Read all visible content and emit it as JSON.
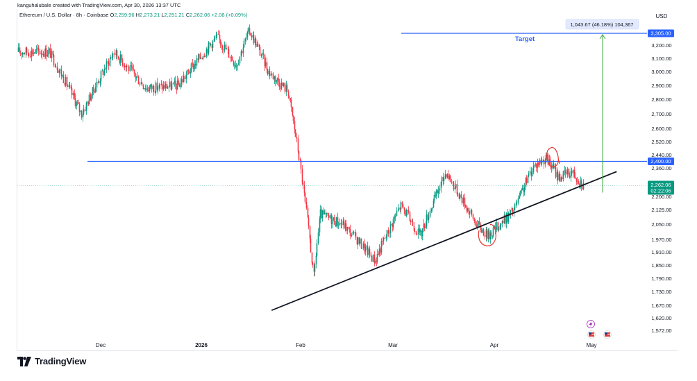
{
  "credit": "kanguhalubale created with TradingView.com, Apr 30, 2026 13:37 UTC",
  "legend": {
    "symbol": "Ethereum / U.S. Dollar · 8h · Coinbase",
    "o_label": "O",
    "o": "2,259.96",
    "h_label": "H",
    "h": "2,273.21",
    "l_label": "L",
    "l": "2,251.21",
    "c_label": "C",
    "c": "2,262.06",
    "change": "+2.08 (+0.09%)"
  },
  "logo_text": "TradingView",
  "colors": {
    "up": "#089981",
    "down": "#f23645",
    "hline": "#2962ff",
    "trend": "#131722",
    "target_arrow": "#4caf50",
    "annotation": "#e53935",
    "price_tag": "#089981"
  },
  "icons": [
    "flag-us-icon",
    "flag-us-icon",
    "lightning-event-icon"
  ],
  "chart_data": {
    "type": "candlestick",
    "currency": "USD",
    "y_axis_ticks": [
      "3,305.00",
      "3,200.00",
      "3,100.00",
      "3,000.00",
      "2,900.00",
      "2,800.00",
      "2,700.00",
      "2,600.00",
      "2,520.00",
      "2,440.00",
      "2,400.00",
      "2,360.00",
      "2,280.00",
      "2,262.06",
      "2,200.00",
      "2,125.00",
      "2,050.00",
      "1,970.00",
      "1,910.00",
      "1,850.00",
      "1,790.00",
      "1,730.00",
      "1,670.00",
      "1,620.00",
      "1,572.00"
    ],
    "y_tick_values": [
      3200,
      3100,
      3000,
      2900,
      2800,
      2700,
      2600,
      2520,
      2440,
      2360,
      2280,
      2200,
      2125,
      2050,
      1970,
      1910,
      1850,
      1790,
      1730,
      1670,
      1620,
      1572
    ],
    "x_labels": [
      "Dec",
      "2026",
      "Feb",
      "Mar",
      "Apr",
      "May"
    ],
    "last_price": "2,262.06",
    "countdown": "02:22:06",
    "resistance": {
      "value": 2400.0,
      "label": "2,400.00"
    },
    "target": {
      "value": 3305.0,
      "label": "3,305.00",
      "text": "Target"
    },
    "measure_label": "1,043.67 (46.18%) 104,367",
    "trendline": {
      "from": {
        "date": "2026-01-23",
        "price": 1650
      },
      "to": {
        "date": "2026-05-10",
        "price": 2340
      }
    },
    "anchors": [
      {
        "date": "2025-11-15",
        "price": 3150
      },
      {
        "date": "2025-11-25",
        "price": 2700
      },
      {
        "date": "2025-12-05",
        "price": 3150
      },
      {
        "date": "2025-12-15",
        "price": 2880
      },
      {
        "date": "2025-12-25",
        "price": 2900
      },
      {
        "date": "2026-01-06",
        "price": 3270
      },
      {
        "date": "2026-01-12",
        "price": 3050
      },
      {
        "date": "2026-01-16",
        "price": 3330
      },
      {
        "date": "2026-01-22",
        "price": 3000
      },
      {
        "date": "2026-01-28",
        "price": 2860
      },
      {
        "date": "2026-02-01",
        "price": 2350
      },
      {
        "date": "2026-02-05",
        "price": 1790
      },
      {
        "date": "2026-02-07",
        "price": 2100
      },
      {
        "date": "2026-02-14",
        "price": 2050
      },
      {
        "date": "2026-02-24",
        "price": 1870
      },
      {
        "date": "2026-03-04",
        "price": 2150
      },
      {
        "date": "2026-03-10",
        "price": 1990
      },
      {
        "date": "2026-03-18",
        "price": 2340
      },
      {
        "date": "2026-03-27",
        "price": 2060
      },
      {
        "date": "2026-03-31",
        "price": 1990
      },
      {
        "date": "2026-04-08",
        "price": 2120
      },
      {
        "date": "2026-04-14",
        "price": 2370
      },
      {
        "date": "2026-04-18",
        "price": 2420
      },
      {
        "date": "2026-04-22",
        "price": 2310
      },
      {
        "date": "2026-04-26",
        "price": 2340
      },
      {
        "date": "2026-04-30",
        "price": 2262
      }
    ]
  }
}
